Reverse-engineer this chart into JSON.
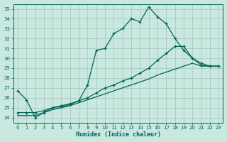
{
  "xlabel": "Humidex (Indice chaleur)",
  "bg_color": "#c8e8e0",
  "grid_color": "#a8c8c0",
  "line_color": "#006655",
  "xlim": [
    -0.5,
    23.5
  ],
  "ylim": [
    23.5,
    35.5
  ],
  "xticks": [
    0,
    1,
    2,
    3,
    4,
    5,
    6,
    7,
    8,
    9,
    10,
    11,
    12,
    13,
    14,
    15,
    16,
    17,
    18,
    19,
    20,
    21,
    22,
    23
  ],
  "yticks": [
    24,
    25,
    26,
    27,
    28,
    29,
    30,
    31,
    32,
    33,
    34,
    35
  ],
  "line1_x": [
    0,
    1,
    2,
    3,
    4,
    5,
    6,
    7,
    8,
    9,
    10,
    11,
    12,
    13,
    14,
    15,
    16,
    17,
    18,
    19,
    20,
    21,
    22,
    23
  ],
  "line1_y": [
    26.7,
    25.8,
    24.0,
    24.5,
    25.0,
    25.1,
    25.3,
    25.7,
    27.3,
    30.8,
    31.0,
    32.5,
    33.0,
    34.0,
    33.7,
    35.2,
    34.2,
    33.5,
    32.0,
    30.8,
    30.0,
    29.5,
    29.2,
    29.2
  ],
  "line2_x": [
    0,
    1,
    2,
    3,
    4,
    5,
    6,
    7,
    8,
    9,
    10,
    11,
    12,
    13,
    14,
    15,
    16,
    17,
    18,
    19,
    20,
    21,
    22,
    23
  ],
  "line2_y": [
    24.5,
    24.5,
    24.5,
    24.7,
    25.0,
    25.2,
    25.4,
    25.7,
    26.0,
    26.5,
    27.0,
    27.3,
    27.7,
    28.0,
    28.5,
    29.0,
    29.8,
    30.5,
    31.2,
    31.2,
    30.0,
    29.3,
    29.2,
    29.2
  ],
  "line3_x": [
    0,
    1,
    2,
    3,
    4,
    5,
    6,
    7,
    8,
    9,
    10,
    11,
    12,
    13,
    14,
    15,
    16,
    17,
    18,
    19,
    20,
    21,
    22,
    23
  ],
  "line3_y": [
    24.2,
    24.2,
    24.2,
    24.5,
    24.8,
    25.0,
    25.2,
    25.5,
    25.8,
    26.1,
    26.4,
    26.7,
    27.0,
    27.3,
    27.6,
    27.9,
    28.3,
    28.6,
    28.9,
    29.2,
    29.5,
    29.2,
    29.2,
    29.2
  ]
}
